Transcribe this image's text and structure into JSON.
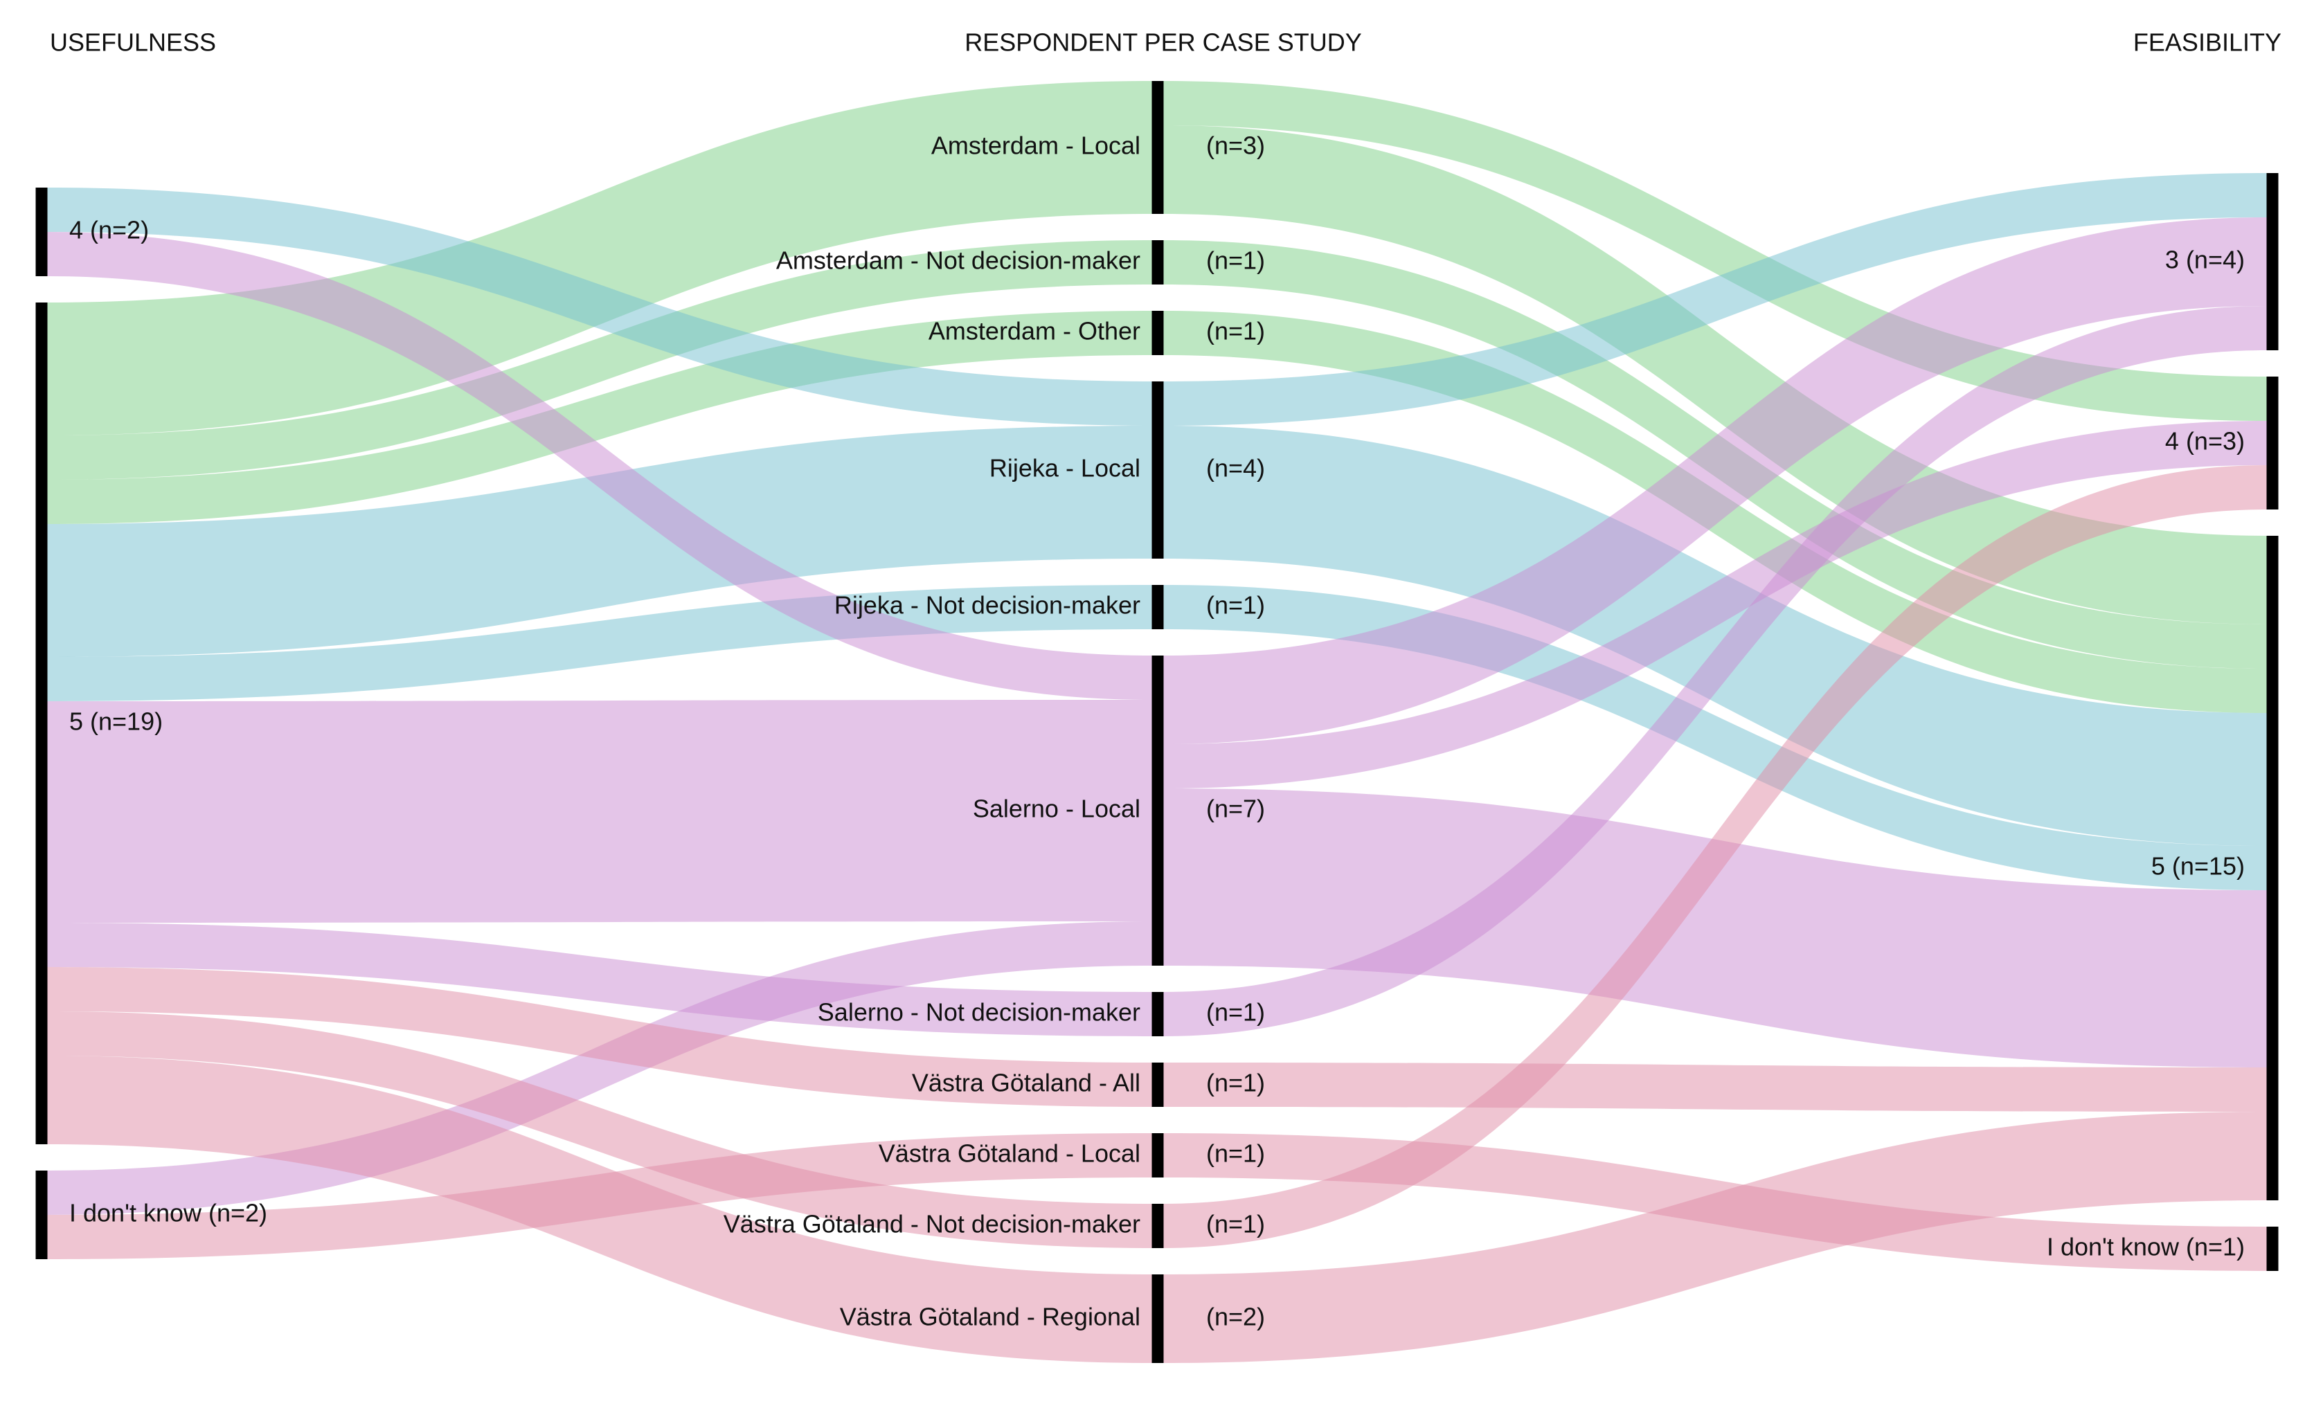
{
  "chart_data": {
    "type": "sankey",
    "columns": [
      {
        "title": "USEFULNESS",
        "nodes": [
          {
            "name": "4 (n=2)",
            "value": 2
          },
          {
            "name": "5 (n=19)",
            "value": 19
          },
          {
            "name": "I don't know (n=2)",
            "value": 2
          }
        ]
      },
      {
        "title": "RESPONDENT PER CASE STUDY",
        "nodes": [
          {
            "name": "Amsterdam - Local",
            "value": 3,
            "value_label": "(n=3)",
            "color": "#7ccf86"
          },
          {
            "name": "Amsterdam - Not decision-maker",
            "value": 1,
            "value_label": "(n=1)",
            "color": "#7ccf86"
          },
          {
            "name": "Amsterdam - Other",
            "value": 1,
            "value_label": "(n=1)",
            "color": "#7ccf86"
          },
          {
            "name": "Rijeka - Local",
            "value": 4,
            "value_label": "(n=4)",
            "color": "#74bfcf"
          },
          {
            "name": "Rijeka - Not decision-maker",
            "value": 1,
            "value_label": "(n=1)",
            "color": "#74bfcf"
          },
          {
            "name": "Salerno - Local",
            "value": 7,
            "value_label": "(n=7)",
            "color": "#c98bd2"
          },
          {
            "name": "Salerno - Not decision-maker",
            "value": 1,
            "value_label": "(n=1)",
            "color": "#c98bd2"
          },
          {
            "name": "Västra Götaland - All",
            "value": 1,
            "value_label": "(n=1)",
            "color": "#e08ba6"
          },
          {
            "name": "Västra Götaland - Local",
            "value": 1,
            "value_label": "(n=1)",
            "color": "#e08ba6"
          },
          {
            "name": "Västra Götaland - Not decision-maker",
            "value": 1,
            "value_label": "(n=1)",
            "color": "#e08ba6"
          },
          {
            "name": "Västra Götaland - Regional",
            "value": 2,
            "value_label": "(n=2)",
            "color": "#e08ba6"
          }
        ]
      },
      {
        "title": "FEASIBILITY",
        "nodes": [
          {
            "name": "3 (n=4)",
            "value": 4
          },
          {
            "name": "4 (n=3)",
            "value": 3
          },
          {
            "name": "5 (n=15)",
            "value": 15
          },
          {
            "name": "I don't know (n=1)",
            "value": 1
          }
        ]
      }
    ],
    "links": [
      {
        "source": "5 (n=19)",
        "target": "Amsterdam - Local",
        "value": 3
      },
      {
        "source": "5 (n=19)",
        "target": "Amsterdam - Not decision-maker",
        "value": 1
      },
      {
        "source": "5 (n=19)",
        "target": "Amsterdam - Other",
        "value": 1
      },
      {
        "source": "4 (n=2)",
        "target": "Rijeka - Local",
        "value": 1
      },
      {
        "source": "5 (n=19)",
        "target": "Rijeka - Local",
        "value": 3
      },
      {
        "source": "5 (n=19)",
        "target": "Rijeka - Not decision-maker",
        "value": 1
      },
      {
        "source": "4 (n=2)",
        "target": "Salerno - Local",
        "value": 1
      },
      {
        "source": "5 (n=19)",
        "target": "Salerno - Local",
        "value": 5
      },
      {
        "source": "I don't know (n=2)",
        "target": "Salerno - Local",
        "value": 1
      },
      {
        "source": "5 (n=19)",
        "target": "Salerno - Not decision-maker",
        "value": 1
      },
      {
        "source": "5 (n=19)",
        "target": "Västra Götaland - All",
        "value": 1
      },
      {
        "source": "I don't know (n=2)",
        "target": "Västra Götaland - Local",
        "value": 1
      },
      {
        "source": "5 (n=19)",
        "target": "Västra Götaland - Not decision-maker",
        "value": 1
      },
      {
        "source": "5 (n=19)",
        "target": "Västra Götaland - Regional",
        "value": 2
      },
      {
        "source": "Amsterdam - Local",
        "target": "4 (n=3)",
        "value": 1
      },
      {
        "source": "Amsterdam - Local",
        "target": "5 (n=15)",
        "value": 2
      },
      {
        "source": "Amsterdam - Not decision-maker",
        "target": "5 (n=15)",
        "value": 1
      },
      {
        "source": "Amsterdam - Other",
        "target": "5 (n=15)",
        "value": 1
      },
      {
        "source": "Rijeka - Local",
        "target": "3 (n=4)",
        "value": 1
      },
      {
        "source": "Rijeka - Local",
        "target": "5 (n=15)",
        "value": 3
      },
      {
        "source": "Rijeka - Not decision-maker",
        "target": "5 (n=15)",
        "value": 1
      },
      {
        "source": "Salerno - Local",
        "target": "3 (n=4)",
        "value": 2
      },
      {
        "source": "Salerno - Local",
        "target": "4 (n=3)",
        "value": 1
      },
      {
        "source": "Salerno - Local",
        "target": "5 (n=15)",
        "value": 4
      },
      {
        "source": "Salerno - Not decision-maker",
        "target": "3 (n=4)",
        "value": 1
      },
      {
        "source": "Västra Götaland - All",
        "target": "5 (n=15)",
        "value": 1
      },
      {
        "source": "Västra Götaland - Local",
        "target": "I don't know (n=1)",
        "value": 1
      },
      {
        "source": "Västra Götaland - Not decision-maker",
        "target": "4 (n=3)",
        "value": 1
      },
      {
        "source": "Västra Götaland - Regional",
        "target": "5 (n=15)",
        "value": 2
      }
    ]
  }
}
